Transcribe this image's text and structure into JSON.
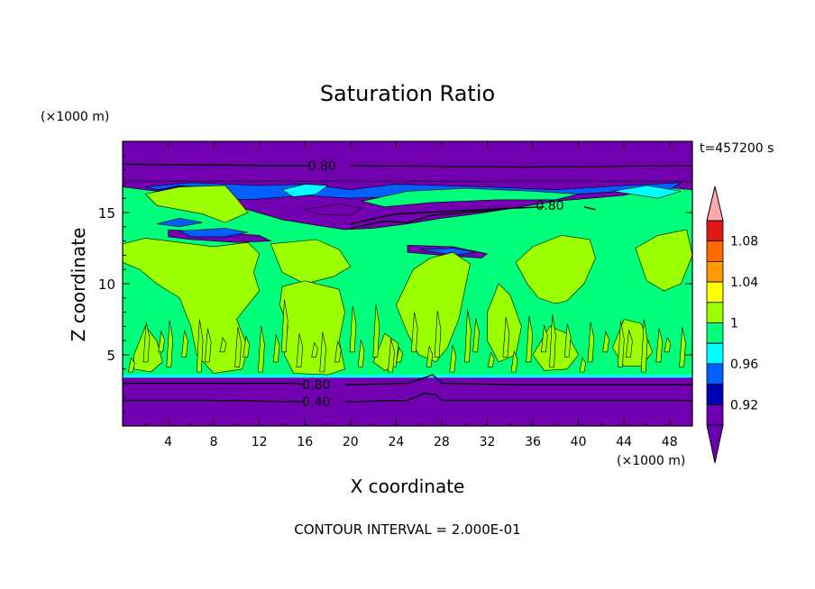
{
  "chart_data": {
    "type": "heatmap",
    "title": "Saturation Ratio",
    "xlabel": "X coordinate",
    "ylabel": "Z coordinate",
    "x_unit": "(×1000 m)",
    "y_unit": "(×1000 m)",
    "time_label": "t=457200 s",
    "footer": "CONTOUR INTERVAL = 2.000E-01",
    "xlim": [
      0,
      50
    ],
    "ylim": [
      0,
      20
    ],
    "x_ticks": [
      "4",
      "8",
      "12",
      "16",
      "20",
      "24",
      "28",
      "32",
      "36",
      "40",
      "44",
      "48"
    ],
    "y_ticks": [
      "5",
      "10",
      "15"
    ],
    "contour_labels": [
      {
        "text": "0.80",
        "x": 17.5,
        "y": 18.3
      },
      {
        "text": "0.80",
        "x": 37.5,
        "y": 15.5
      },
      {
        "text": "0.80",
        "x": 17.0,
        "y": 2.9
      },
      {
        "text": "0.40",
        "x": 17.0,
        "y": 1.7
      }
    ],
    "colorbar": {
      "labels": [
        "1.08",
        "1.04",
        "1",
        "0.96",
        "0.92"
      ],
      "colors": [
        "#e01818",
        "#ff6a00",
        "#ff9a00",
        "#ffff00",
        "#9bff00",
        "#00ff7a",
        "#00ffff",
        "#0060ff",
        "#0000b4",
        "#6e00b4"
      ],
      "over_color": "#ffaaaa",
      "under_color": "#6e00b4"
    },
    "field_colors": {
      "dry": "#7300b0",
      "dark_blue": "#0000b4",
      "blue": "#0060ff",
      "cyan": "#00ffff",
      "green": "#00ff7a",
      "lime": "#9bff00"
    }
  }
}
